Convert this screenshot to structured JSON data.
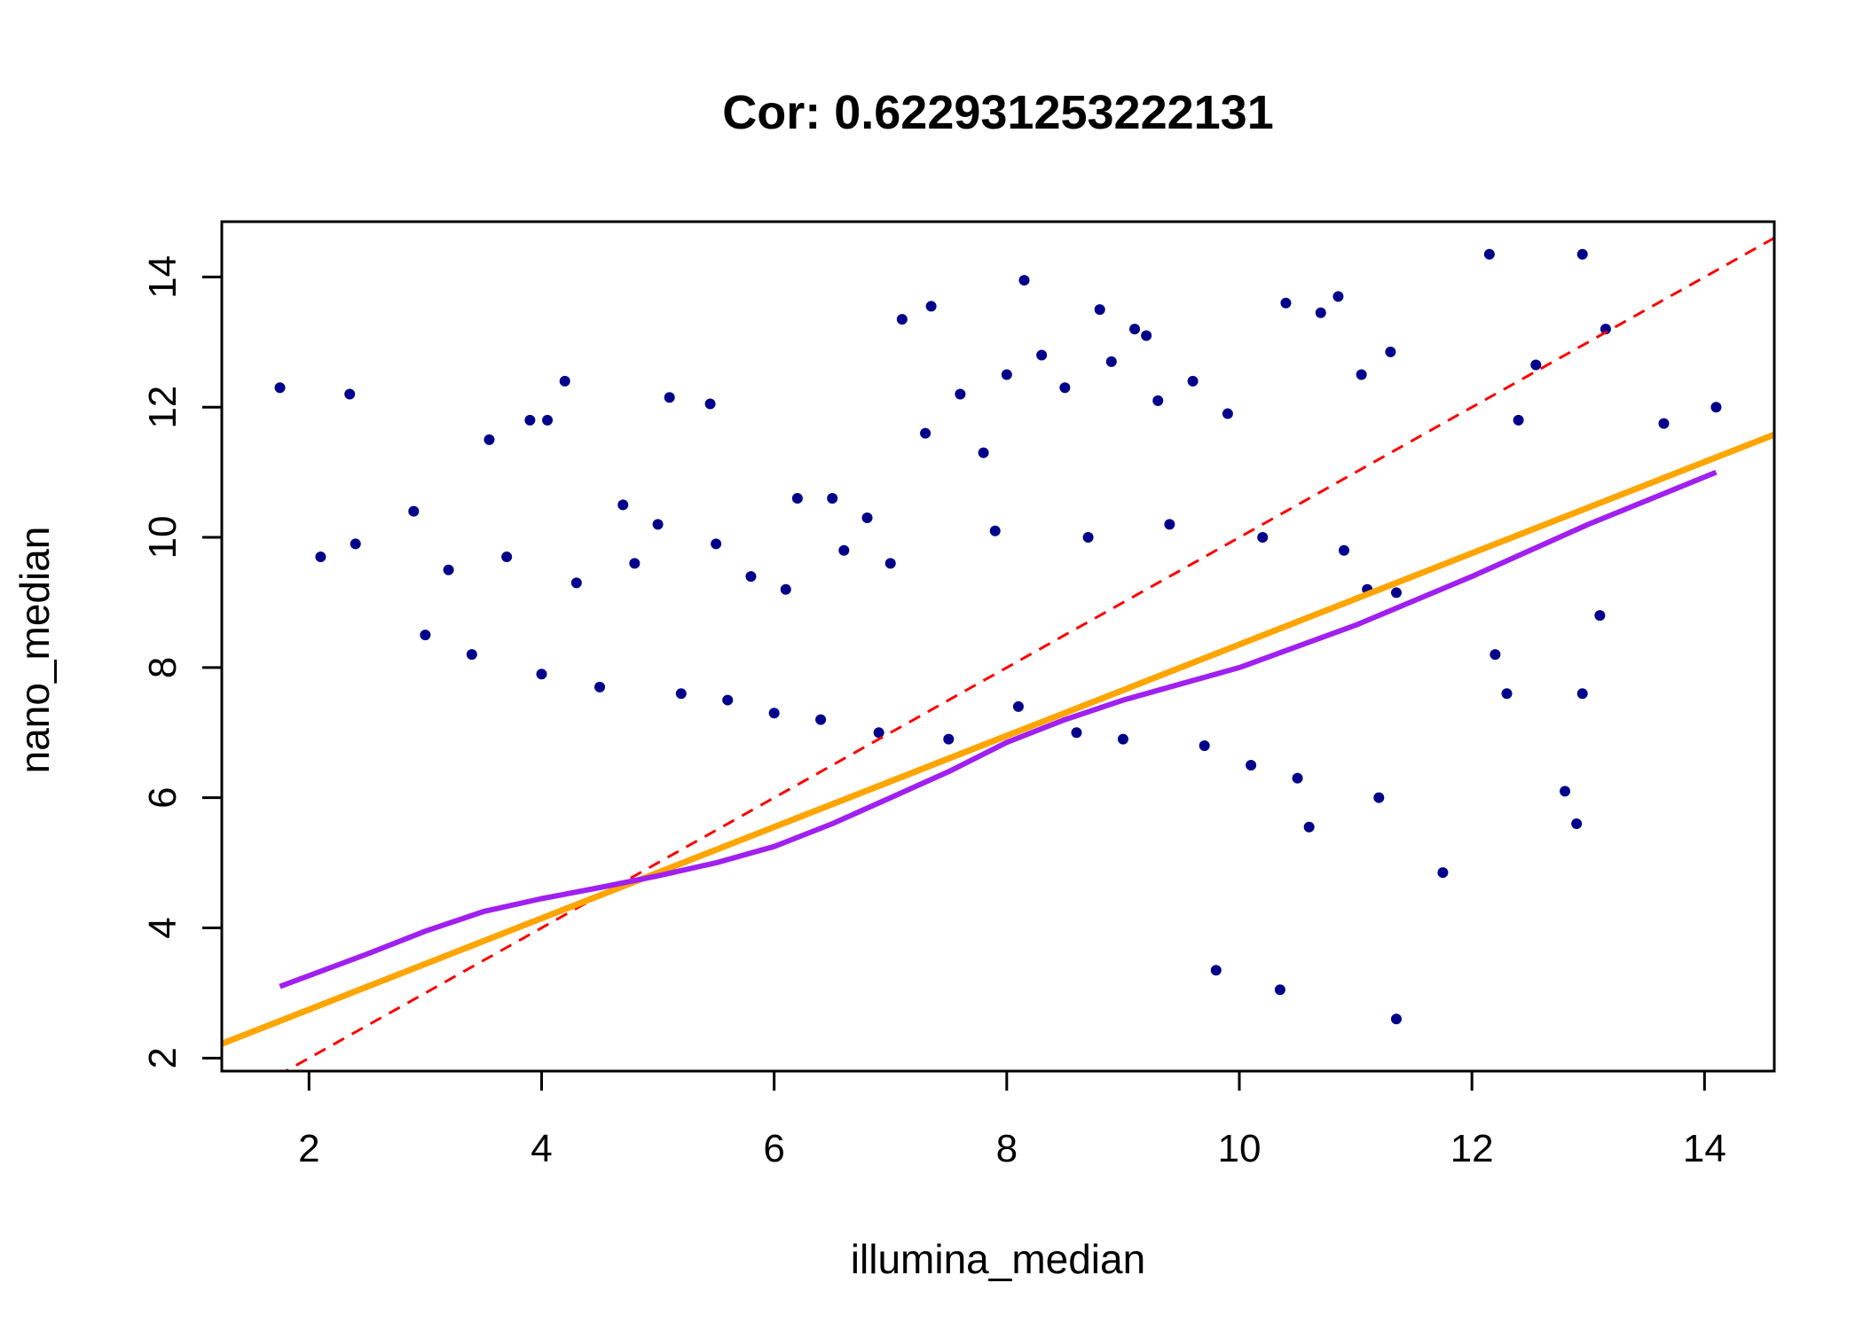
{
  "chart_data": {
    "type": "scatter",
    "title": "Cor: 0.622931253222131",
    "xlabel": "illumina_median",
    "ylabel": "nano_median",
    "xlim": [
      1.25,
      14.6
    ],
    "ylim": [
      1.8,
      14.85
    ],
    "xticks": [
      2,
      4,
      6,
      8,
      10,
      12,
      14
    ],
    "yticks": [
      2,
      4,
      6,
      8,
      10,
      12,
      14
    ],
    "grid": false,
    "legend": "none",
    "colors": {
      "points": "#00008B",
      "identity_line": "#FF0000",
      "regression_line": "#FFA500",
      "smooth_line": "#A020F0"
    },
    "series": [
      {
        "kind": "points",
        "x": [
          1.75,
          2.35,
          4.05,
          4.2,
          5.1,
          5.45,
          7.1,
          7.35,
          8.15,
          8.8,
          9.1,
          9.2,
          10.4,
          10.7,
          10.85,
          11.05,
          11.3,
          12.15,
          12.95,
          13.15,
          12.55,
          13.65,
          14.1,
          11.1,
          11.35,
          12.2,
          12.3,
          12.4,
          12.8,
          12.95,
          12.9,
          13.1,
          11.75,
          11.35,
          10.35,
          9.8,
          10.6,
          3.55,
          3.9,
          2.9,
          2.4,
          2.1,
          4.7,
          5.0,
          5.5,
          6.2,
          6.5,
          6.8,
          7.3,
          7.6,
          7.8,
          8.0,
          8.3,
          8.5,
          8.9,
          9.3,
          9.6,
          9.9,
          3.2,
          3.7,
          4.3,
          4.8,
          5.8,
          6.1,
          6.6,
          7.0,
          7.9,
          8.7,
          9.4,
          10.2,
          10.9,
          3.0,
          3.4,
          4.0,
          4.5,
          5.2,
          5.6,
          6.0,
          6.4,
          6.9,
          7.5,
          8.1,
          8.6,
          9.0,
          9.7,
          10.1,
          10.5,
          11.2
        ],
        "y": [
          12.3,
          12.2,
          11.8,
          12.4,
          12.15,
          12.05,
          13.35,
          13.55,
          13.95,
          13.5,
          13.2,
          13.1,
          13.6,
          13.45,
          13.7,
          12.5,
          12.85,
          14.35,
          14.35,
          13.2,
          12.65,
          11.75,
          12.0,
          9.2,
          9.15,
          8.2,
          7.6,
          11.8,
          6.1,
          7.6,
          5.6,
          8.8,
          4.85,
          2.6,
          3.05,
          3.35,
          5.55,
          11.5,
          11.8,
          10.4,
          9.9,
          9.7,
          10.5,
          10.2,
          9.9,
          10.6,
          10.6,
          10.3,
          11.6,
          12.2,
          11.3,
          12.5,
          12.8,
          12.3,
          12.7,
          12.1,
          12.4,
          11.9,
          9.5,
          9.7,
          9.3,
          9.6,
          9.4,
          9.2,
          9.8,
          9.6,
          10.1,
          10.0,
          10.2,
          10.0,
          9.8,
          8.5,
          8.2,
          7.9,
          7.7,
          7.6,
          7.5,
          7.3,
          7.2,
          7.0,
          6.9,
          7.4,
          7.0,
          6.9,
          6.8,
          6.5,
          6.3,
          6.0
        ]
      },
      {
        "kind": "identity",
        "name": "",
        "x": [
          1.25,
          14.6
        ],
        "y": [
          1.25,
          14.6
        ]
      },
      {
        "kind": "regression",
        "name": "",
        "x": [
          1.25,
          14.6
        ],
        "y": [
          2.22,
          11.58
        ]
      },
      {
        "kind": "smooth",
        "name": "",
        "x": [
          1.75,
          2.5,
          3.0,
          3.5,
          4.0,
          4.5,
          5.0,
          5.5,
          6.0,
          6.5,
          7.0,
          7.5,
          8.0,
          8.5,
          9.0,
          9.5,
          10.0,
          11.0,
          12.0,
          13.0,
          14.1
        ],
        "y": [
          3.1,
          3.6,
          3.95,
          4.25,
          4.45,
          4.62,
          4.8,
          5.0,
          5.25,
          5.6,
          6.0,
          6.4,
          6.85,
          7.2,
          7.5,
          7.75,
          8.0,
          8.65,
          9.4,
          10.2,
          11.0
        ]
      }
    ]
  }
}
